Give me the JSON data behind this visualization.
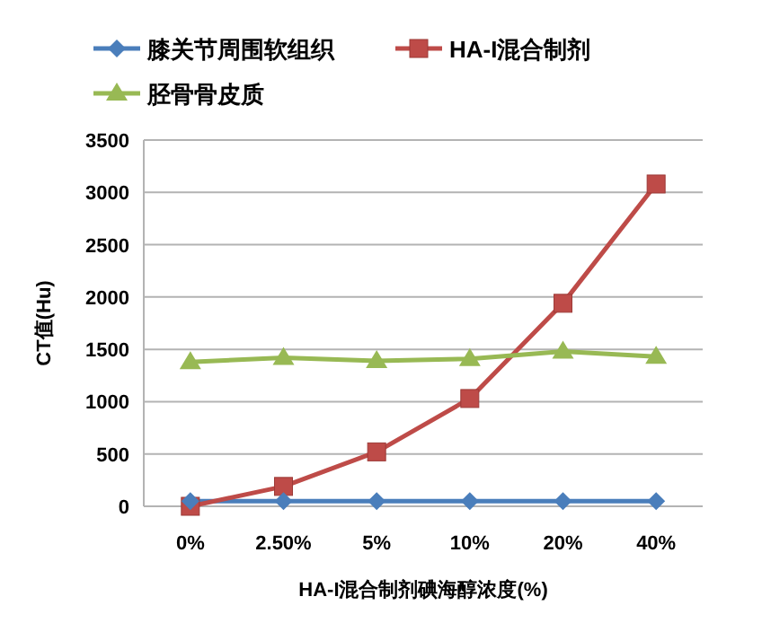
{
  "chart_data": {
    "type": "line",
    "xlabel": "HA-I混合制剂碘海醇浓度(%)",
    "ylabel": "CT值(Hu)",
    "categories": [
      "0%",
      "2.50%",
      "5%",
      "10%",
      "20%",
      "40%"
    ],
    "series": [
      {
        "name": "膝关节周围软组织",
        "color": "#4a7ebb",
        "marker": "diamond",
        "values": [
          50,
          50,
          50,
          50,
          50,
          50
        ]
      },
      {
        "name": "HA-I混合制剂",
        "color": "#be4b48",
        "marker": "square",
        "values": [
          0,
          190,
          520,
          1030,
          1940,
          3080
        ]
      },
      {
        "name": "胫骨骨皮质",
        "color": "#98b954",
        "marker": "triangle",
        "values": [
          1380,
          1420,
          1390,
          1410,
          1480,
          1430
        ]
      }
    ],
    "ylim": [
      0,
      3500
    ],
    "yticks": [
      0,
      500,
      1000,
      1500,
      2000,
      2500,
      3000,
      3500
    ],
    "grid": "y",
    "legend": "top"
  }
}
